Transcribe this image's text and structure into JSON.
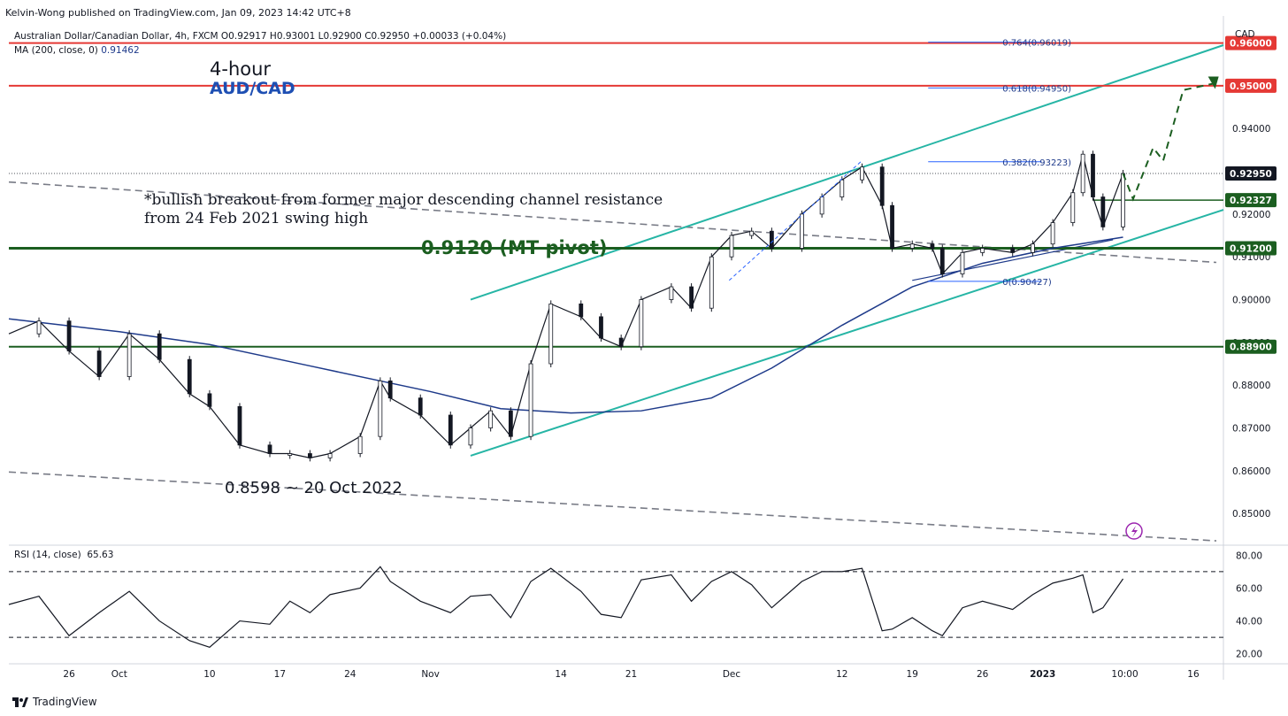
{
  "header": {
    "published": "Kelvin-Wong published on TradingView.com, Jan 09, 2023 14:42 UTC+8",
    "symbol_line": "Australian Dollar/Canadian Dollar, 4h, FXCM  O0.92917  H0.93001  L0.92900  C0.92950  +0.00033 (+0.04%)",
    "ma_label": "MA (200, close, 0)",
    "ma_value": "0.91462",
    "currency": "CAD"
  },
  "brand": "TradingView",
  "annotations": {
    "timeframe": "4-hour",
    "pair": "AUD/CAD",
    "note_line1": "*bullish breakout from former major descending channel resistance",
    "note_line2": "from 24 Feb 2021 swing high",
    "pivot": "0.9120 (MT pivot)",
    "low": "0.8598 ~ 20 Oct 2022"
  },
  "colors": {
    "up_candle": "#ffffff",
    "down_candle": "#131722",
    "ma": "#1e3a8a",
    "channel": "#26b5a5",
    "resistance": "#e53935",
    "support": "#1b5e20",
    "projection": "#1b5e20",
    "fib": "#2962ff"
  },
  "chart_data": [
    {
      "type": "line",
      "title": "Australian Dollar/Canadian Dollar, 4h, FXCM",
      "ylim": [
        0.843,
        0.9655
      ],
      "yticks": [
        "0.85000",
        "0.86000",
        "0.87000",
        "0.88000",
        "0.89000",
        "0.90000",
        "0.91000",
        "0.92000",
        "0.93000",
        "0.94000",
        "0.95000",
        "0.96000"
      ],
      "xticks": [
        "26",
        "Oct",
        "10",
        "17",
        "24",
        "Nov",
        "14",
        "21",
        "Dec",
        "12",
        "19",
        "26",
        "2023",
        "10:00",
        "16"
      ],
      "price_series": {
        "name": "Price (4h close, approx.)",
        "x": [
          "2022-09-20",
          "2022-09-23",
          "2022-09-26",
          "2022-09-29",
          "2022-10-02",
          "2022-10-05",
          "2022-10-08",
          "2022-10-10",
          "2022-10-13",
          "2022-10-16",
          "2022-10-18",
          "2022-10-20",
          "2022-10-22",
          "2022-10-25",
          "2022-10-27",
          "2022-10-28",
          "2022-10-31",
          "2022-11-03",
          "2022-11-05",
          "2022-11-07",
          "2022-11-09",
          "2022-11-11",
          "2022-11-13",
          "2022-11-16",
          "2022-11-18",
          "2022-11-20",
          "2022-11-22",
          "2022-11-25",
          "2022-11-27",
          "2022-11-29",
          "2022-12-01",
          "2022-12-03",
          "2022-12-05",
          "2022-12-08",
          "2022-12-10",
          "2022-12-12",
          "2022-12-14",
          "2022-12-16",
          "2022-12-17",
          "2022-12-19",
          "2022-12-21",
          "2022-12-22",
          "2022-12-24",
          "2022-12-26",
          "2022-12-29",
          "2022-12-31",
          "2023-01-02",
          "2023-01-04",
          "2023-01-05",
          "2023-01-06",
          "2023-01-07",
          "2023-01-09"
        ],
        "values": [
          0.892,
          0.895,
          0.888,
          0.882,
          0.892,
          0.886,
          0.878,
          0.875,
          0.866,
          0.864,
          0.864,
          0.863,
          0.864,
          0.868,
          0.881,
          0.877,
          0.873,
          0.866,
          0.87,
          0.874,
          0.868,
          0.885,
          0.899,
          0.896,
          0.891,
          0.889,
          0.9,
          0.903,
          0.898,
          0.91,
          0.915,
          0.916,
          0.912,
          0.92,
          0.924,
          0.928,
          0.931,
          0.922,
          0.912,
          0.913,
          0.912,
          0.906,
          0.911,
          0.912,
          0.911,
          0.913,
          0.918,
          0.925,
          0.934,
          0.924,
          0.917,
          0.9295
        ]
      },
      "ma_series": {
        "name": "MA (200, close, 0)",
        "x": [
          "2022-09-20",
          "2022-10-01",
          "2022-10-10",
          "2022-10-20",
          "2022-11-01",
          "2022-11-08",
          "2022-11-15",
          "2022-11-22",
          "2022-11-29",
          "2022-12-05",
          "2022-12-12",
          "2022-12-19",
          "2022-12-26",
          "2023-01-02",
          "2023-01-09"
        ],
        "values": [
          0.8955,
          0.8925,
          0.8895,
          0.8845,
          0.8785,
          0.8745,
          0.8735,
          0.874,
          0.877,
          0.884,
          0.894,
          0.903,
          0.9085,
          0.912,
          0.9146
        ]
      },
      "horizontal_levels": [
        {
          "value": 0.96,
          "label": "0.96000",
          "color": "#e53935"
        },
        {
          "value": 0.95,
          "label": "0.95000",
          "color": "#e53935"
        },
        {
          "value": 0.9295,
          "label": "0.92950",
          "color": "#131722"
        },
        {
          "value": 0.92327,
          "label": "0.92327",
          "color": "#1b5e20"
        },
        {
          "value": 0.912,
          "label": "0.91200",
          "color": "#1b5e20"
        },
        {
          "value": 0.889,
          "label": "0.88900",
          "color": "#1b5e20"
        }
      ],
      "fibonacci": [
        {
          "label": "0.764(0.96019)",
          "value": 0.96019
        },
        {
          "label": "0.618(0.94950)",
          "value": 0.9495
        },
        {
          "label": "0.382(0.93223)",
          "value": 0.93223
        },
        {
          "label": "0(0.90427)",
          "value": 0.90427
        }
      ],
      "projection": {
        "x": [
          "2023-01-09",
          "2023-01-10",
          "2023-01-12",
          "2023-01-13",
          "2023-01-15",
          "2023-01-18"
        ],
        "values": [
          0.9295,
          0.9235,
          0.9355,
          0.9325,
          0.949,
          0.9505
        ]
      }
    },
    {
      "type": "line",
      "title": "RSI (14, close)",
      "current_value": "65.63",
      "ylim": [
        15,
        85
      ],
      "yticks": [
        "20.00",
        "40.00",
        "60.00",
        "80.00"
      ],
      "reference_levels": [
        70,
        30
      ],
      "series": [
        {
          "name": "RSI",
          "x": [
            "2022-09-20",
            "2022-09-23",
            "2022-09-26",
            "2022-09-29",
            "2022-10-02",
            "2022-10-05",
            "2022-10-08",
            "2022-10-10",
            "2022-10-13",
            "2022-10-16",
            "2022-10-18",
            "2022-10-20",
            "2022-10-22",
            "2022-10-25",
            "2022-10-27",
            "2022-10-28",
            "2022-10-31",
            "2022-11-03",
            "2022-11-05",
            "2022-11-07",
            "2022-11-09",
            "2022-11-11",
            "2022-11-13",
            "2022-11-16",
            "2022-11-18",
            "2022-11-20",
            "2022-11-22",
            "2022-11-25",
            "2022-11-27",
            "2022-11-29",
            "2022-12-01",
            "2022-12-03",
            "2022-12-05",
            "2022-12-08",
            "2022-12-10",
            "2022-12-12",
            "2022-12-14",
            "2022-12-16",
            "2022-12-17",
            "2022-12-19",
            "2022-12-21",
            "2022-12-22",
            "2022-12-24",
            "2022-12-26",
            "2022-12-29",
            "2022-12-31",
            "2023-01-02",
            "2023-01-04",
            "2023-01-05",
            "2023-01-06",
            "2023-01-07",
            "2023-01-09"
          ],
          "values": [
            50,
            55,
            31,
            45,
            58,
            40,
            28,
            24,
            40,
            38,
            52,
            45,
            56,
            60,
            73,
            64,
            52,
            45,
            55,
            56,
            42,
            64,
            72,
            58,
            44,
            42,
            65,
            68,
            52,
            64,
            70,
            62,
            48,
            64,
            70,
            70,
            72,
            34,
            35,
            42,
            34,
            31,
            48,
            52,
            47,
            56,
            63,
            66,
            68,
            45,
            48,
            65.63
          ]
        }
      ]
    }
  ]
}
